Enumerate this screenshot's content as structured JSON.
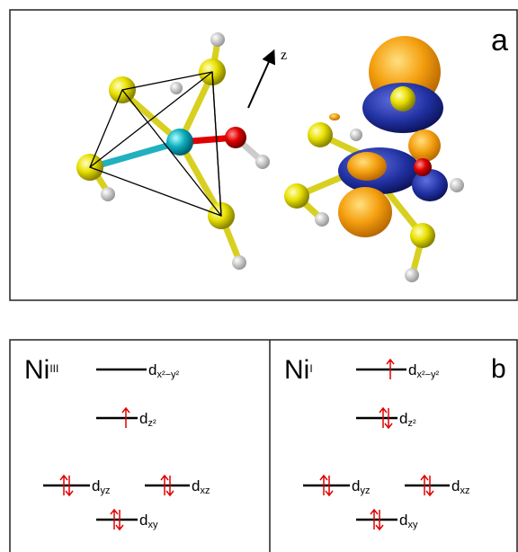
{
  "panel_a": {
    "label": "a",
    "axis_label": "z"
  },
  "panel_b": {
    "label": "b",
    "columns": [
      {
        "ion": "Ni",
        "oxidation_state": "III",
        "levels": [
          {
            "symbol": "d",
            "subscript": "x²−y²"
          },
          {
            "symbol": "d",
            "subscript": "z²"
          },
          {
            "symbol": "d",
            "subscript": "yz"
          },
          {
            "symbol": "d",
            "subscript": "xz"
          },
          {
            "symbol": "d",
            "subscript": "xy"
          }
        ]
      },
      {
        "ion": "Ni",
        "oxidation_state": "I",
        "levels": [
          {
            "symbol": "d",
            "subscript": "x²−y²"
          },
          {
            "symbol": "d",
            "subscript": "z²"
          },
          {
            "symbol": "d",
            "subscript": "yz"
          },
          {
            "symbol": "d",
            "subscript": "xz"
          },
          {
            "symbol": "d",
            "subscript": "xy"
          }
        ]
      }
    ]
  }
}
